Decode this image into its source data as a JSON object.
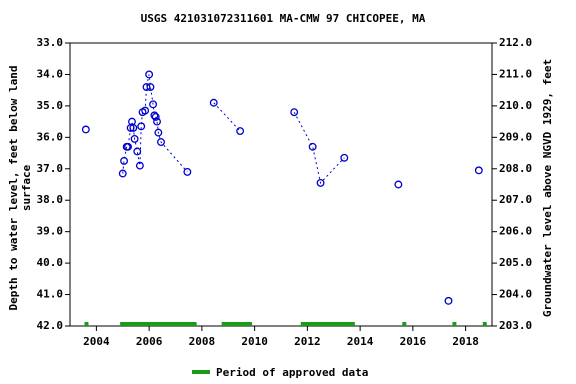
{
  "chart_data": {
    "type": "scatter",
    "title": "USGS 421031072311601 MA-CMW 97 CHICOPEE, MA",
    "ylabel": [
      "Depth to water level, feet below land",
      "surface"
    ],
    "y2label": "Groundwater level above NGVD 1929, feet",
    "xlim": [
      2003,
      2019
    ],
    "xticks": [
      2004,
      2006,
      2008,
      2010,
      2012,
      2014,
      2016,
      2018
    ],
    "ylim": [
      33,
      42
    ],
    "yticks": [
      {
        "value": 33,
        "label": "33.0"
      },
      {
        "value": 34,
        "label": "34.0"
      },
      {
        "value": 35,
        "label": "35.0"
      },
      {
        "value": 36,
        "label": "36.0"
      },
      {
        "value": 37,
        "label": "37.0"
      },
      {
        "value": 38,
        "label": "38.0"
      },
      {
        "value": 39,
        "label": "39.0"
      },
      {
        "value": 40,
        "label": "40.0"
      },
      {
        "value": 41,
        "label": "41.0"
      },
      {
        "value": 42,
        "label": "42.0"
      }
    ],
    "y2lim": [
      212,
      203
    ],
    "y2ticks": [
      {
        "value": 212,
        "label": "212.0"
      },
      {
        "value": 211,
        "label": "211.0"
      },
      {
        "value": 210,
        "label": "210.0"
      },
      {
        "value": 209,
        "label": "209.0"
      },
      {
        "value": 208,
        "label": "208.0"
      },
      {
        "value": 207,
        "label": "207.0"
      },
      {
        "value": 206,
        "label": "206.0"
      },
      {
        "value": 205,
        "label": "205.0"
      },
      {
        "value": 204,
        "label": "204.0"
      },
      {
        "value": 203,
        "label": "203.0"
      }
    ],
    "color": "#0000cc",
    "series": [
      {
        "x": [
          2003.6
        ],
        "values": [
          35.75
        ]
      },
      {
        "x": [
          2005.0,
          2005.05,
          2005.15,
          2005.2,
          2005.3,
          2005.35,
          2005.4,
          2005.45,
          2005.55,
          2005.65,
          2005.7,
          2005.75,
          2005.85,
          2005.9,
          2006.0,
          2006.05,
          2006.15,
          2006.2,
          2006.25,
          2006.3,
          2006.35,
          2006.45,
          2007.45
        ],
        "values": [
          37.15,
          36.75,
          36.3,
          36.3,
          35.7,
          35.5,
          35.7,
          36.05,
          36.45,
          36.9,
          35.65,
          35.2,
          35.15,
          34.4,
          34.0,
          34.4,
          34.95,
          35.3,
          35.35,
          35.5,
          35.85,
          36.15,
          37.1
        ]
      },
      {
        "x": [
          2008.45,
          2009.45
        ],
        "values": [
          34.9,
          35.8
        ]
      },
      {
        "x": [
          2011.5,
          2012.2,
          2012.5,
          2013.4
        ],
        "values": [
          35.2,
          36.3,
          37.45,
          36.65
        ]
      },
      {
        "x": [
          2015.45
        ],
        "values": [
          37.5
        ]
      },
      {
        "x": [
          2017.35
        ],
        "values": [
          41.2
        ]
      },
      {
        "x": [
          2018.5
        ],
        "values": [
          37.05
        ]
      }
    ],
    "approved_periods": [
      [
        2003.55,
        2003.7
      ],
      [
        2004.9,
        2007.8
      ],
      [
        2008.75,
        2009.9
      ],
      [
        2011.75,
        2013.8
      ],
      [
        2015.6,
        2015.75
      ],
      [
        2017.5,
        2017.65
      ],
      [
        2018.65,
        2018.8
      ]
    ],
    "approved_color": "#1a9c1a",
    "approved_label": "Period of approved data"
  }
}
